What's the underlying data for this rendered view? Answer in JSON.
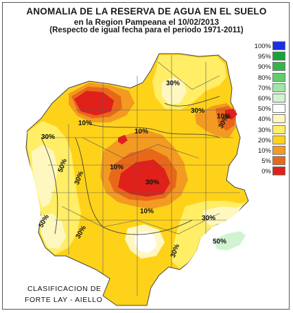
{
  "title": {
    "line1": "ANOMALIA DE LA RESERVA DE AGUA EN EL SUELO",
    "line2": "en la Region Pampeana el   10/02/2013",
    "line3": "(Respecto de igual fecha para el periodo 1971-2011)"
  },
  "legend": [
    {
      "label": "100%",
      "color": "#1a2ee6"
    },
    {
      "label": "95%",
      "color": "#16a43a"
    },
    {
      "label": "90%",
      "color": "#33b54c"
    },
    {
      "label": "80%",
      "color": "#5fce6c"
    },
    {
      "label": "70%",
      "color": "#9fe5a4"
    },
    {
      "label": "60%",
      "color": "#d2f3d2"
    },
    {
      "label": "50%",
      "color": "#ffffff"
    },
    {
      "label": "40%",
      "color": "#fff7c0"
    },
    {
      "label": "30%",
      "color": "#ffee66"
    },
    {
      "label": "20%",
      "color": "#ffd21a"
    },
    {
      "label": "10%",
      "color": "#f39a22"
    },
    {
      "label": "5%",
      "color": "#e8681a"
    },
    {
      "label": "0%",
      "color": "#e0201a"
    }
  ],
  "contour_labels": [
    {
      "text": "30%"
    },
    {
      "text": "30%"
    },
    {
      "text": "10%"
    },
    {
      "text": "10%"
    },
    {
      "text": "10%"
    },
    {
      "text": "30%"
    },
    {
      "text": "50%"
    },
    {
      "text": "30%"
    },
    {
      "text": "10%"
    },
    {
      "text": "10%"
    },
    {
      "text": "30%"
    },
    {
      "text": "50%"
    },
    {
      "text": "30%"
    },
    {
      "text": "50%"
    },
    {
      "text": "30%"
    },
    {
      "text": "30%"
    },
    {
      "text": "30%"
    }
  ],
  "credit": {
    "line1": "CLASIFICACION DE",
    "line2": "FORTE LAY - AIELLO"
  }
}
